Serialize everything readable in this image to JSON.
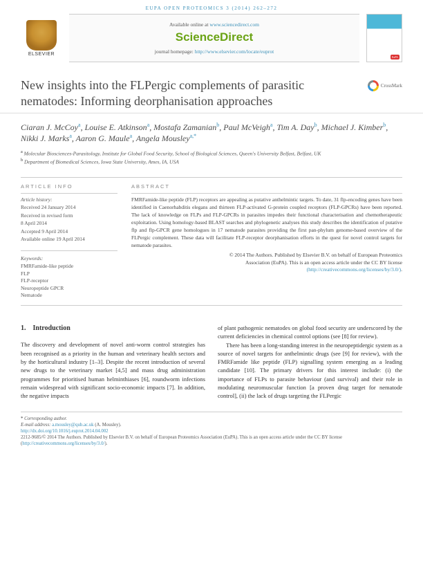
{
  "header": {
    "running": "EUPA OPEN PROTEOMICS 3 (2014) 262–272"
  },
  "masthead": {
    "available": "Available online at ",
    "available_url": "www.sciencedirect.com",
    "brand": "ScienceDirect",
    "homepage_label": "journal homepage: ",
    "homepage_url": "http://www.elsevier.com/locate/euprot",
    "publisher": "ELSEVIER"
  },
  "title": "New insights into the FLPergic complements of parasitic nematodes: Informing deorphanisation approaches",
  "crossmark": "CrossMark",
  "authors": [
    {
      "name": "Ciaran J. McCoy",
      "aff": "a"
    },
    {
      "name": "Louise E. Atkinson",
      "aff": "a"
    },
    {
      "name": "Mostafa Zamanian",
      "aff": "b"
    },
    {
      "name": "Paul McVeigh",
      "aff": "a"
    },
    {
      "name": "Tim A. Day",
      "aff": "b"
    },
    {
      "name": "Michael J. Kimber",
      "aff": "b"
    },
    {
      "name": "Nikki J. Marks",
      "aff": "a"
    },
    {
      "name": "Aaron G. Maule",
      "aff": "a"
    },
    {
      "name": "Angela Mousley",
      "aff": "a,*"
    }
  ],
  "affiliations": {
    "a": "Molecular Biosciences-Parasitology, Institute for Global Food Security, School of Biological Sciences, Queen's University Belfast, Belfast, UK",
    "b": "Department of Biomedical Sciences, Iowa State University, Ames, IA, USA"
  },
  "info": {
    "heading": "ARTICLE INFO",
    "history_label": "Article history:",
    "received": "Received 24 January 2014",
    "revised": "Received in revised form",
    "revised_date": "8 April 2014",
    "accepted": "Accepted 9 April 2014",
    "online": "Available online 19 April 2014",
    "keywords_label": "Keywords:",
    "keywords": [
      "FMRFamide-like peptide",
      "FLP",
      "FLP-receptor",
      "Neuropeptide GPCR",
      "Nematode"
    ]
  },
  "abstract": {
    "heading": "ABSTRACT",
    "text": "FMRFamide-like peptide (FLP) receptors are appealing as putative anthelmintic targets. To date, 31 flp-encoding genes have been identified in Caenorhabditis elegans and thirteen FLP-activated G-protein coupled receptors (FLP-GPCRs) have been reported. The lack of knowledge on FLPs and FLP-GPCRs in parasites impedes their functional characterisation and chemotherapeutic exploitation. Using homology-based BLAST searches and phylogenetic analyses this study describes the identification of putative flp and flp-GPCR gene homologues in 17 nematode parasites providing the first pan-phylum genome-based overview of the FLPergic complement. These data will facilitate FLP-receptor deorphanisation efforts in the quest for novel control targets for nematode parasites.",
    "copyright1": "© 2014 The Authors. Published by Elsevier B.V. on behalf of European Proteomics",
    "copyright2": "Association (EuPA). This is an open access article under the CC BY license",
    "license_url": "(http://creativecommons.org/licenses/by/3.0/)"
  },
  "intro": {
    "heading_num": "1.",
    "heading": "Introduction",
    "col1_p1": "The discovery and development of novel anti-worm control strategies has been recognised as a priority in the human and veterinary health sectors and by the horticultural industry [1–3]. Despite the recent introduction of several new drugs to the veterinary market [4,5] and mass drug administration programmes for prioritised human helminthiases [6], roundworm infections remain widespread with significant socio-economic impacts [7]. In addition, the negative impacts",
    "col2_p1": "of plant pathogenic nematodes on global food security are underscored by the current deficiencies in chemical control options (see [8] for review).",
    "col2_p2": "There has been a long-standing interest in the neuropeptidergic system as a source of novel targets for anthelmintic drugs (see [9] for review), with the FMRFamide like peptide (FLP) signalling system emerging as a leading candidate [10]. The primary drivers for this interest include: (i) the importance of FLPs to parasite behaviour (and survival) and their role in modulating neuromuscular function [a proven drug target for nematode control], (ii) the lack of drugs targeting the FLPergic"
  },
  "footnotes": {
    "corr_label": "Corresponding author.",
    "email_label": "E-mail address: ",
    "email": "a.mousley@qub.ac.uk",
    "email_name": " (A. Mousley).",
    "doi": "http://dx.doi.org/10.1016/j.euprot.2014.04.002",
    "issn_line": "2212-9685/© 2014 The Authors. Published by Elsevier B.V. on behalf of European Proteomics Association (EuPA). This is an open access article under the CC BY license (",
    "license_url": "http://creativecommons.org/licenses/by/3.0/",
    "issn_close": ")."
  }
}
